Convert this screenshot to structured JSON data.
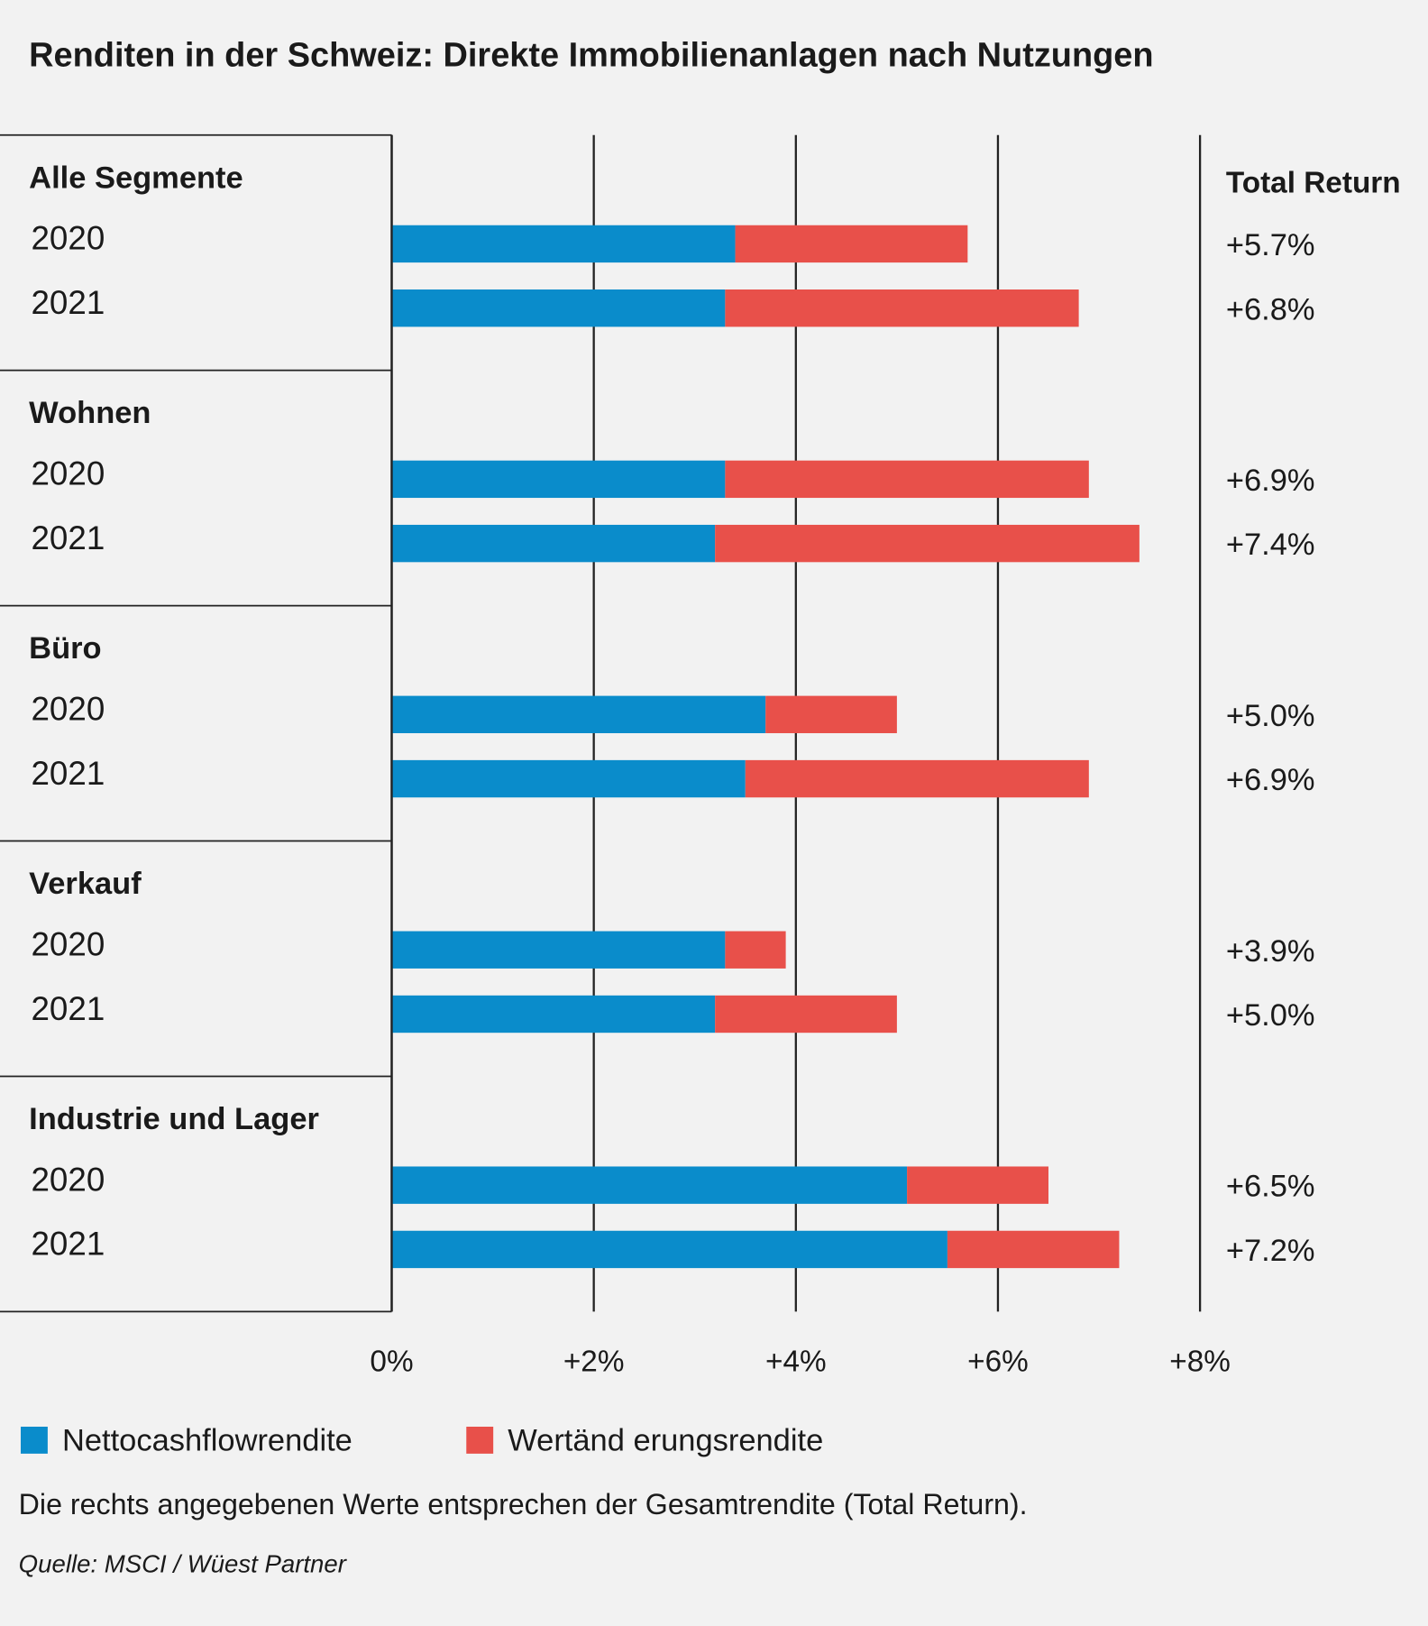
{
  "chart_data": {
    "type": "stacked-bar-horizontal",
    "title": "Renditen in der Schweiz: Direkte Immobilienanlagen nach Nutzungen",
    "groups": [
      "Alle Segmente",
      "Wohnen",
      "Büro",
      "Verkauf",
      "Industrie und Lager"
    ],
    "categories": [
      "2020",
      "2021",
      "2020",
      "2021",
      "2020",
      "2021",
      "2020",
      "2021",
      "2020",
      "2021"
    ],
    "series": [
      {
        "name": "Nettocashflowrendite",
        "color": "#0a8ccb",
        "values": [
          3.4,
          3.3,
          3.3,
          3.2,
          3.7,
          3.5,
          3.3,
          3.2,
          5.1,
          5.5
        ]
      },
      {
        "name": "Wertänd erungsrendite",
        "color": "#e8504a",
        "values": [
          2.3,
          3.5,
          3.6,
          4.2,
          1.3,
          3.4,
          0.6,
          1.8,
          1.4,
          1.7
        ]
      }
    ],
    "totals": {
      "name": "Total Return",
      "values": [
        5.7,
        6.8,
        6.9,
        7.4,
        5.0,
        6.9,
        3.9,
        5.0,
        6.5,
        7.2
      ],
      "value_labels": [
        "+5.7%",
        "+6.8%",
        "+6.9%",
        "+7.4%",
        "+5.0%",
        "+6.9%",
        "+3.9%",
        "+5.0%",
        "+6.5%",
        "+7.2%"
      ]
    },
    "xlim": [
      0,
      8
    ],
    "xticks": [
      {
        "value": 0,
        "label": "0%"
      },
      {
        "value": 2,
        "label": "+2%"
      },
      {
        "value": 4,
        "label": "+4%"
      },
      {
        "value": 6,
        "label": "+6%"
      },
      {
        "value": 8,
        "label": "+8%"
      }
    ],
    "grid": true,
    "note": "Die rechts angegebenen Werte entsprechen der Gesamtrendite (Total Return).",
    "source": "Quelle: MSCI / Wüest Partner"
  }
}
